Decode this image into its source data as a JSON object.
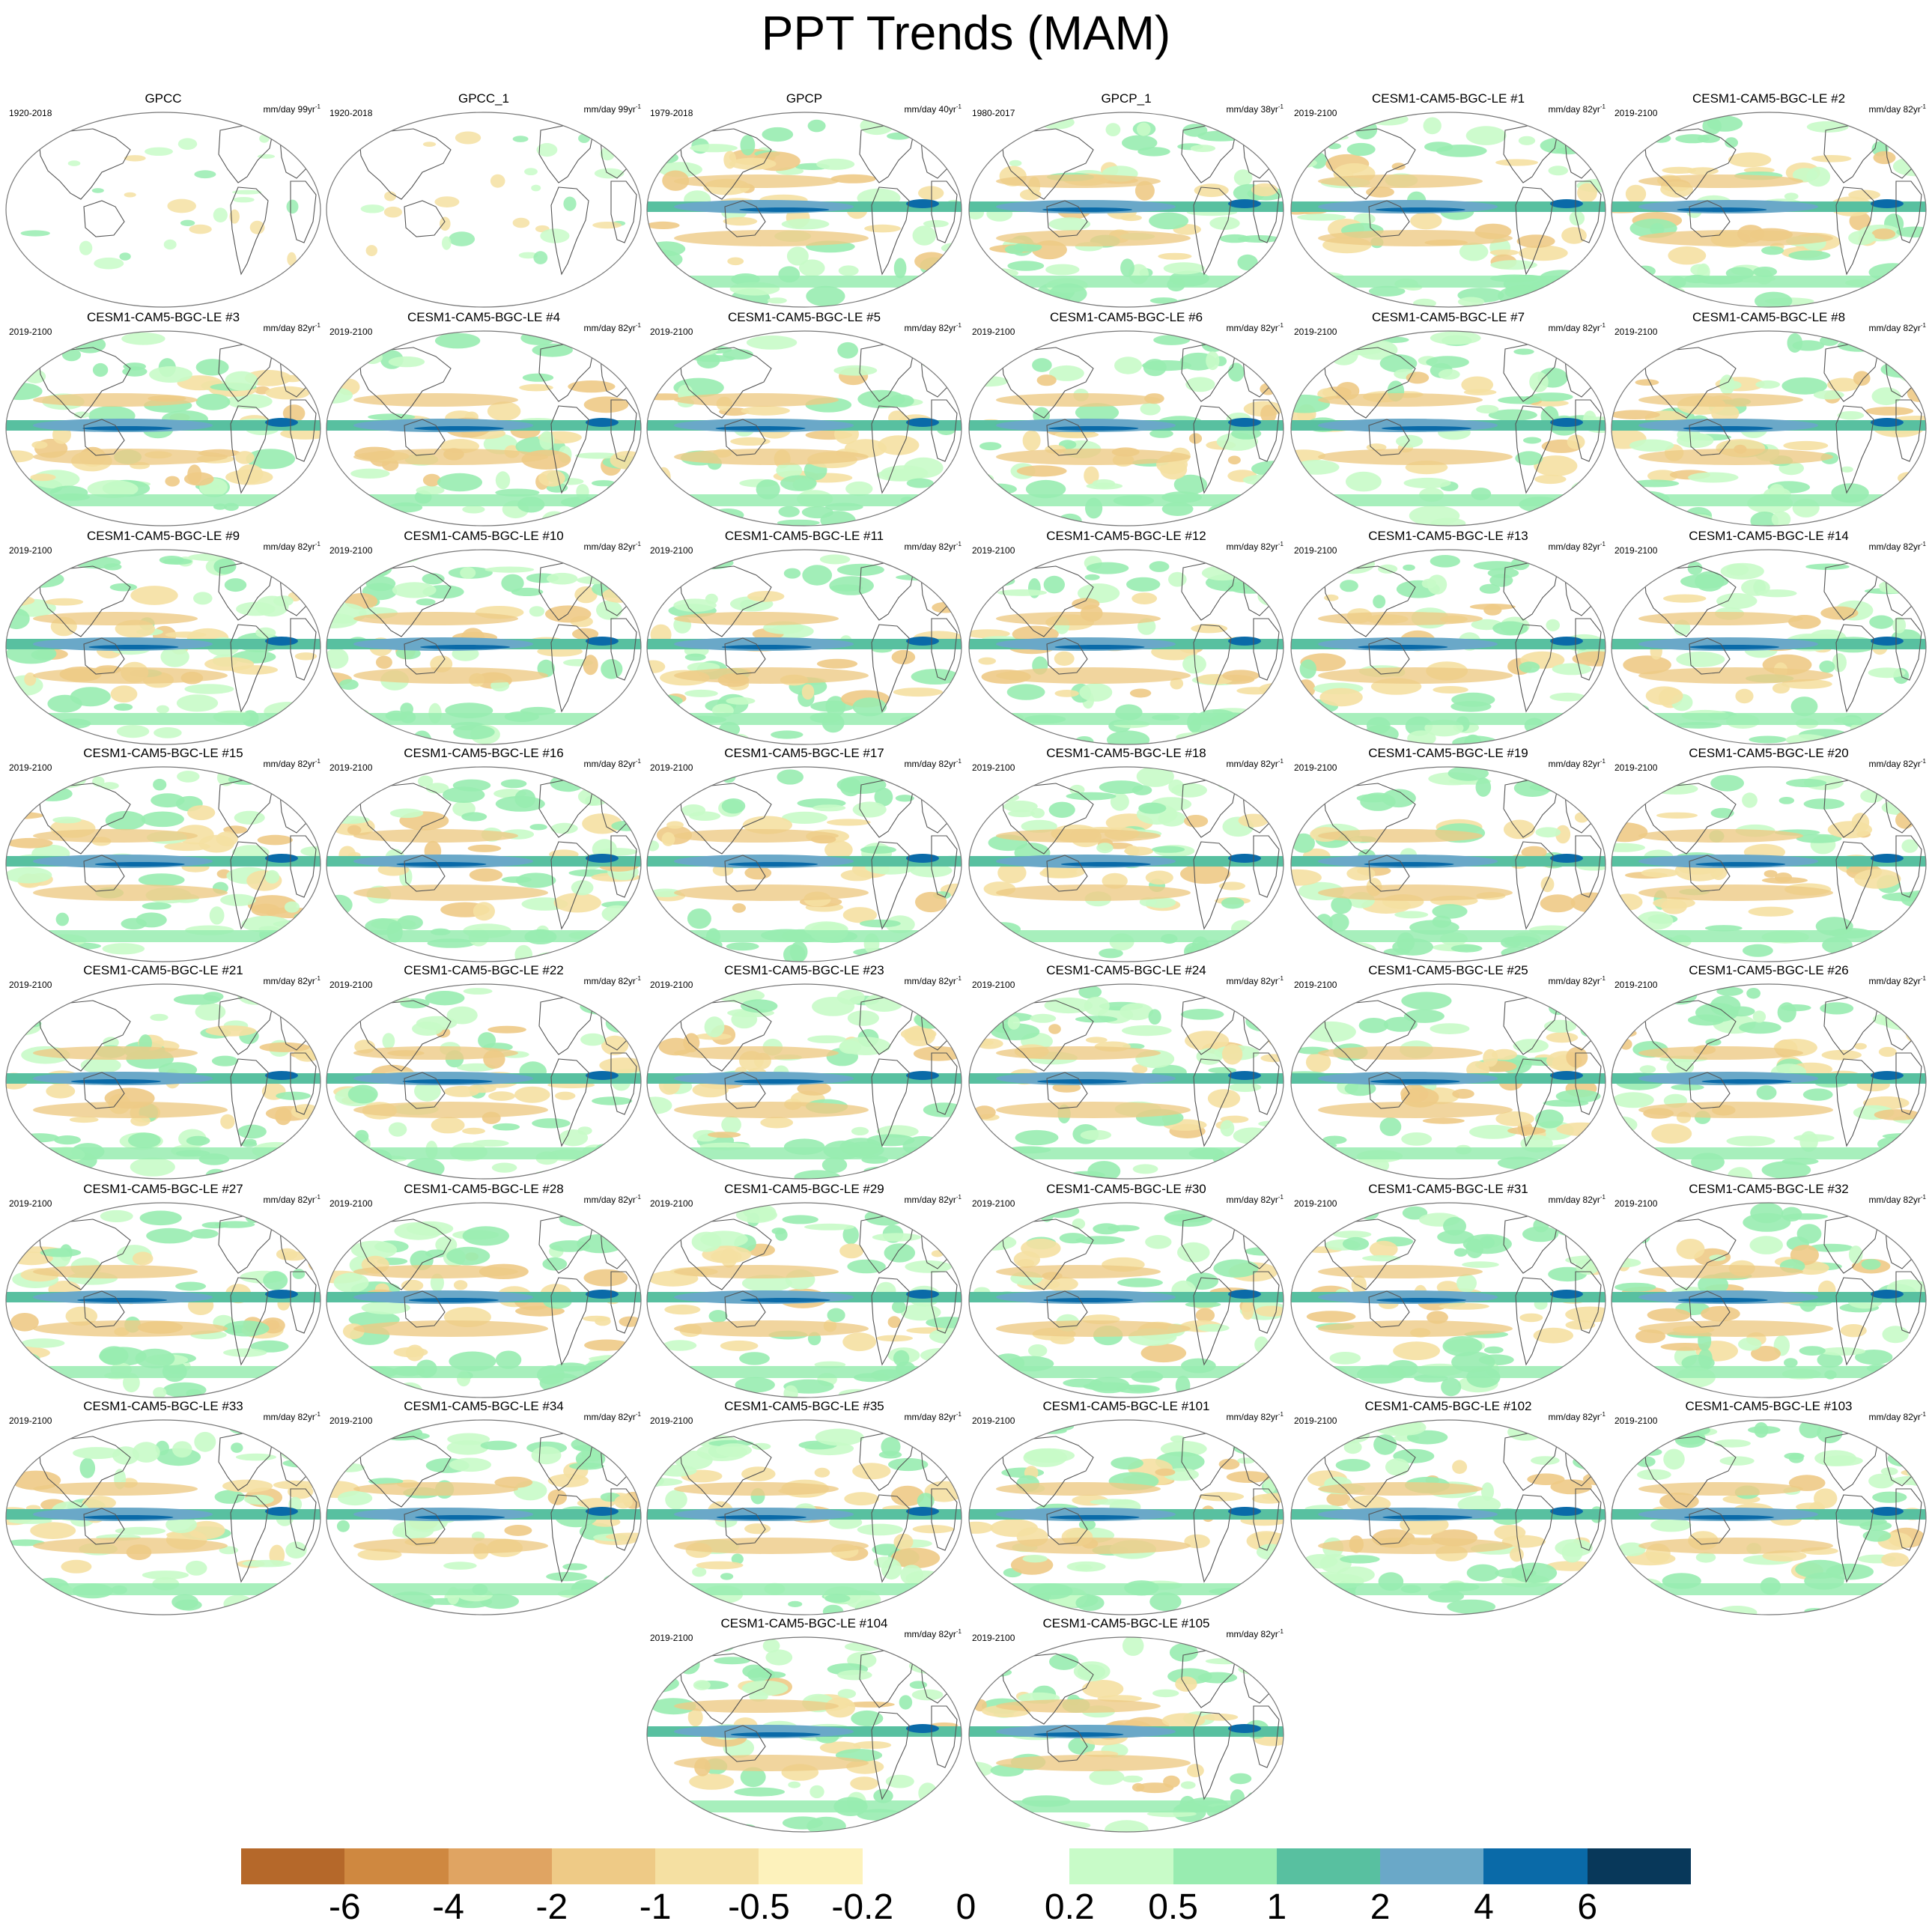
{
  "figure": {
    "title": "PPT Trends (MAM)"
  },
  "panel_units": {
    "text": "mm/day ",
    "exp": "-1"
  },
  "panels": [
    {
      "name": "GPCC",
      "period": "1920-2018",
      "years": "99yr",
      "data_coverage": "land-only"
    },
    {
      "name": "GPCC_1",
      "period": "1920-2018",
      "years": "99yr",
      "data_coverage": "land-only"
    },
    {
      "name": "GPCP",
      "period": "1979-2018",
      "years": "40yr",
      "data_coverage": "global"
    },
    {
      "name": "GPCP_1",
      "period": "1980-2017",
      "years": "38yr",
      "data_coverage": "global"
    },
    {
      "name": "CESM1-CAM5-BGC-LE #1",
      "period": "2019-2100",
      "years": "82yr",
      "data_coverage": "global"
    },
    {
      "name": "CESM1-CAM5-BGC-LE #2",
      "period": "2019-2100",
      "years": "82yr",
      "data_coverage": "global"
    },
    {
      "name": "CESM1-CAM5-BGC-LE #3",
      "period": "2019-2100",
      "years": "82yr",
      "data_coverage": "global"
    },
    {
      "name": "CESM1-CAM5-BGC-LE #4",
      "period": "2019-2100",
      "years": "82yr",
      "data_coverage": "global"
    },
    {
      "name": "CESM1-CAM5-BGC-LE #5",
      "period": "2019-2100",
      "years": "82yr",
      "data_coverage": "global"
    },
    {
      "name": "CESM1-CAM5-BGC-LE #6",
      "period": "2019-2100",
      "years": "82yr",
      "data_coverage": "global"
    },
    {
      "name": "CESM1-CAM5-BGC-LE #7",
      "period": "2019-2100",
      "years": "82yr",
      "data_coverage": "global"
    },
    {
      "name": "CESM1-CAM5-BGC-LE #8",
      "period": "2019-2100",
      "years": "82yr",
      "data_coverage": "global"
    },
    {
      "name": "CESM1-CAM5-BGC-LE #9",
      "period": "2019-2100",
      "years": "82yr",
      "data_coverage": "global"
    },
    {
      "name": "CESM1-CAM5-BGC-LE #10",
      "period": "2019-2100",
      "years": "82yr",
      "data_coverage": "global"
    },
    {
      "name": "CESM1-CAM5-BGC-LE #11",
      "period": "2019-2100",
      "years": "82yr",
      "data_coverage": "global"
    },
    {
      "name": "CESM1-CAM5-BGC-LE #12",
      "period": "2019-2100",
      "years": "82yr",
      "data_coverage": "global"
    },
    {
      "name": "CESM1-CAM5-BGC-LE #13",
      "period": "2019-2100",
      "years": "82yr",
      "data_coverage": "global"
    },
    {
      "name": "CESM1-CAM5-BGC-LE #14",
      "period": "2019-2100",
      "years": "82yr",
      "data_coverage": "global"
    },
    {
      "name": "CESM1-CAM5-BGC-LE #15",
      "period": "2019-2100",
      "years": "82yr",
      "data_coverage": "global"
    },
    {
      "name": "CESM1-CAM5-BGC-LE #16",
      "period": "2019-2100",
      "years": "82yr",
      "data_coverage": "global"
    },
    {
      "name": "CESM1-CAM5-BGC-LE #17",
      "period": "2019-2100",
      "years": "82yr",
      "data_coverage": "global"
    },
    {
      "name": "CESM1-CAM5-BGC-LE #18",
      "period": "2019-2100",
      "years": "82yr",
      "data_coverage": "global"
    },
    {
      "name": "CESM1-CAM5-BGC-LE #19",
      "period": "2019-2100",
      "years": "82yr",
      "data_coverage": "global"
    },
    {
      "name": "CESM1-CAM5-BGC-LE #20",
      "period": "2019-2100",
      "years": "82yr",
      "data_coverage": "global"
    },
    {
      "name": "CESM1-CAM5-BGC-LE #21",
      "period": "2019-2100",
      "years": "82yr",
      "data_coverage": "global"
    },
    {
      "name": "CESM1-CAM5-BGC-LE #22",
      "period": "2019-2100",
      "years": "82yr",
      "data_coverage": "global"
    },
    {
      "name": "CESM1-CAM5-BGC-LE #23",
      "period": "2019-2100",
      "years": "82yr",
      "data_coverage": "global"
    },
    {
      "name": "CESM1-CAM5-BGC-LE #24",
      "period": "2019-2100",
      "years": "82yr",
      "data_coverage": "global"
    },
    {
      "name": "CESM1-CAM5-BGC-LE #25",
      "period": "2019-2100",
      "years": "82yr",
      "data_coverage": "global"
    },
    {
      "name": "CESM1-CAM5-BGC-LE #26",
      "period": "2019-2100",
      "years": "82yr",
      "data_coverage": "global"
    },
    {
      "name": "CESM1-CAM5-BGC-LE #27",
      "period": "2019-2100",
      "years": "82yr",
      "data_coverage": "global"
    },
    {
      "name": "CESM1-CAM5-BGC-LE #28",
      "period": "2019-2100",
      "years": "82yr",
      "data_coverage": "global"
    },
    {
      "name": "CESM1-CAM5-BGC-LE #29",
      "period": "2019-2100",
      "years": "82yr",
      "data_coverage": "global"
    },
    {
      "name": "CESM1-CAM5-BGC-LE #30",
      "period": "2019-2100",
      "years": "82yr",
      "data_coverage": "global"
    },
    {
      "name": "CESM1-CAM5-BGC-LE #31",
      "period": "2019-2100",
      "years": "82yr",
      "data_coverage": "global"
    },
    {
      "name": "CESM1-CAM5-BGC-LE #32",
      "period": "2019-2100",
      "years": "82yr",
      "data_coverage": "global"
    },
    {
      "name": "CESM1-CAM5-BGC-LE #33",
      "period": "2019-2100",
      "years": "82yr",
      "data_coverage": "global"
    },
    {
      "name": "CESM1-CAM5-BGC-LE #34",
      "period": "2019-2100",
      "years": "82yr",
      "data_coverage": "global"
    },
    {
      "name": "CESM1-CAM5-BGC-LE #35",
      "period": "2019-2100",
      "years": "82yr",
      "data_coverage": "global"
    },
    {
      "name": "CESM1-CAM5-BGC-LE #101",
      "period": "2019-2100",
      "years": "82yr",
      "data_coverage": "global"
    },
    {
      "name": "CESM1-CAM5-BGC-LE #102",
      "period": "2019-2100",
      "years": "82yr",
      "data_coverage": "global"
    },
    {
      "name": "CESM1-CAM5-BGC-LE #103",
      "period": "2019-2100",
      "years": "82yr",
      "data_coverage": "global"
    },
    {
      "name": "CESM1-CAM5-BGC-LE #104",
      "period": "2019-2100",
      "years": "82yr",
      "data_coverage": "global"
    },
    {
      "name": "CESM1-CAM5-BGC-LE #105",
      "period": "2019-2100",
      "years": "82yr",
      "data_coverage": "global"
    }
  ],
  "colorbar": {
    "labels": [
      "-6",
      "-4",
      "-2",
      "-1",
      "-0.5",
      "-0.2",
      "0",
      "0.2",
      "0.5",
      "1",
      "2",
      "4",
      "6"
    ],
    "colors": [
      "#b5682a",
      "#cf8840",
      "#e0a462",
      "#eeca86",
      "#f5e0a2",
      "#fdf2bc",
      "#ffffff",
      "#ffffff",
      "#c8fbc8",
      "#98ecb0",
      "#58c0a0",
      "#6aa8c8",
      "#0a6aa8",
      "#08385a"
    ]
  },
  "map_colors": {
    "coastline": "#555555",
    "frame": "#777777"
  }
}
